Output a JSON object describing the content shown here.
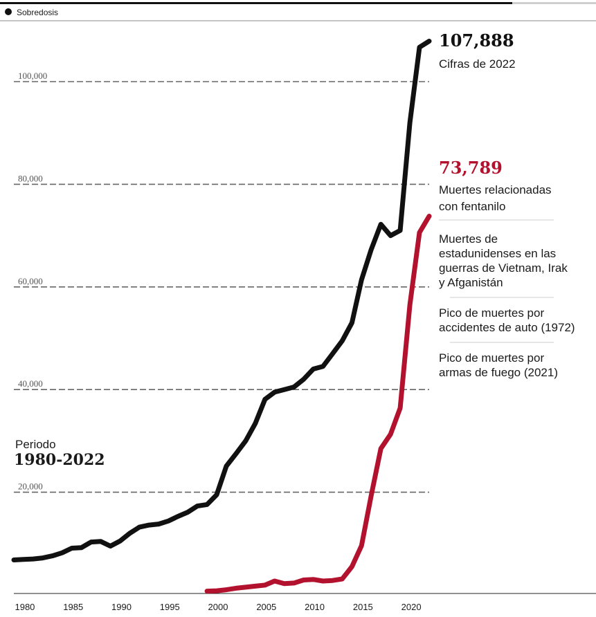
{
  "colors": {
    "overdose": "#111111",
    "fentanyl": "#b3122e",
    "grid": "#666666"
  },
  "legend": {
    "overdose_label": "Sobredosis"
  },
  "period": {
    "label": "Periodo",
    "value": "1980-2022"
  },
  "callouts": {
    "overdose_value": "107,888",
    "overdose_note": "Cifras de 2022",
    "fentanyl_value": "73,789",
    "fentanyl_note_1": "Muertes relacionadas",
    "fentanyl_note_2": "con fentanilo"
  },
  "references": [
    {
      "lines": [
        "Muertes de",
        "estadunidenses en las",
        "guerras de Vietnam, Irak",
        "y Afganistán"
      ]
    },
    {
      "lines": [
        "Pico de muertes por",
        "accidentes de auto (1972)"
      ]
    },
    {
      "lines": [
        "Pico de muertes por",
        "armas de fuego (2021)"
      ]
    }
  ],
  "chart_data": {
    "type": "line",
    "x_ticks": [
      1980,
      1985,
      1990,
      1995,
      2000,
      2005,
      2010,
      2015,
      2020
    ],
    "y_ticks": [
      20000,
      40000,
      60000,
      80000,
      100000
    ],
    "y_tick_labels": [
      "20,000",
      "40,000",
      "60,000",
      "80,000",
      "100,000"
    ],
    "xlim": [
      1979,
      2023
    ],
    "ylim": [
      0,
      110000
    ],
    "grid": "horizontal dashed",
    "series": [
      {
        "name": "Sobredosis",
        "color": "#111111",
        "x": [
          1979,
          1980,
          1981,
          1982,
          1983,
          1984,
          1985,
          1986,
          1987,
          1988,
          1989,
          1990,
          1991,
          1992,
          1993,
          1994,
          1995,
          1996,
          1997,
          1998,
          1999,
          2000,
          2001,
          2002,
          2003,
          2004,
          2005,
          2006,
          2007,
          2008,
          2009,
          2010,
          2011,
          2012,
          2013,
          2014,
          2015,
          2016,
          2017,
          2018,
          2019,
          2020,
          2021,
          2022
        ],
        "y": [
          6800,
          6900,
          7000,
          7200,
          7600,
          8200,
          9100,
          9200,
          10300,
          10400,
          9500,
          10500,
          12000,
          13200,
          13600,
          13800,
          14400,
          15300,
          16100,
          17300,
          17600,
          19500,
          25100,
          27500,
          30000,
          33400,
          38100,
          39500,
          40000,
          40500,
          42000,
          44000,
          44500,
          47000,
          49500,
          53000,
          61400,
          67300,
          72200,
          70000,
          71000,
          92000,
          106700,
          107888
        ]
      },
      {
        "name": "Muertes relacionadas con fentanilo",
        "color": "#b3122e",
        "x": [
          1999,
          2000,
          2001,
          2002,
          2003,
          2004,
          2005,
          2006,
          2007,
          2008,
          2009,
          2010,
          2011,
          2012,
          2013,
          2014,
          2015,
          2016,
          2017,
          2018,
          2019,
          2020,
          2021,
          2022
        ],
        "y": [
          730,
          800,
          1000,
          1300,
          1500,
          1700,
          1900,
          2700,
          2200,
          2300,
          2900,
          3000,
          2700,
          2800,
          3100,
          5500,
          9600,
          19400,
          28500,
          31300,
          36400,
          56500,
          70600,
          73789
        ]
      }
    ]
  }
}
